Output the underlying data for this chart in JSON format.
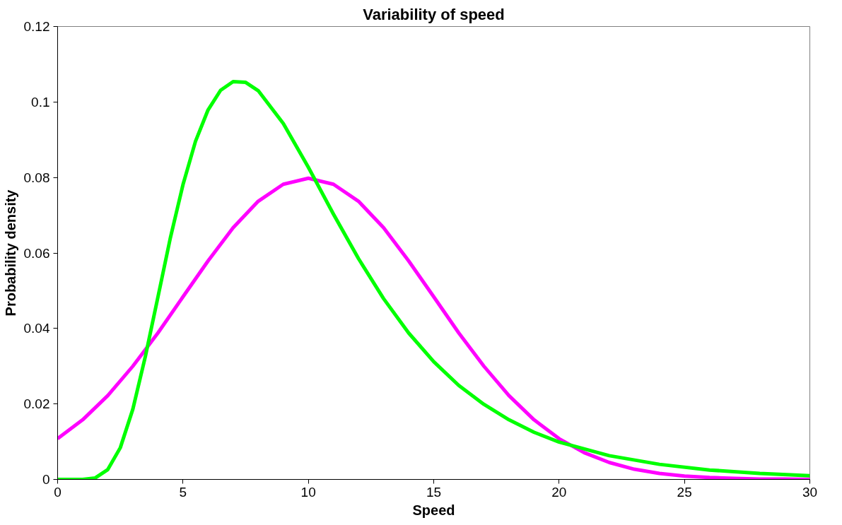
{
  "chart_data": {
    "type": "line",
    "title": "Variability of speed",
    "xlabel": "Speed",
    "ylabel": "Probability density",
    "xlim": [
      0,
      30
    ],
    "ylim": [
      0,
      0.12
    ],
    "xticks": [
      0,
      5,
      10,
      15,
      20,
      25,
      30
    ],
    "yticks": [
      0,
      0.02,
      0.04,
      0.06,
      0.08,
      0.1,
      0.12
    ],
    "grid": false,
    "marker": "none",
    "line_style": "solid",
    "series": [
      {
        "color": "#ff00ff",
        "x": [
          0,
          1,
          2,
          3,
          4,
          5,
          6,
          7,
          8,
          9,
          10,
          11,
          12,
          13,
          14,
          15,
          16,
          17,
          18,
          19,
          20,
          21,
          22,
          23,
          24,
          25,
          26,
          27,
          28,
          29,
          30
        ],
        "values": [
          0.0108,
          0.0158,
          0.0222,
          0.03,
          0.0388,
          0.0484,
          0.0579,
          0.0667,
          0.0737,
          0.0782,
          0.0798,
          0.0782,
          0.0737,
          0.0667,
          0.0579,
          0.0484,
          0.0388,
          0.03,
          0.0222,
          0.0158,
          0.0108,
          0.0071,
          0.0045,
          0.0027,
          0.0016,
          0.0009,
          0.0005,
          0.0003,
          0.0001,
          0.0001,
          0
        ]
      },
      {
        "color": "#00ff00",
        "x": [
          0,
          1,
          1.5,
          2,
          2.5,
          3,
          3.5,
          4,
          4.5,
          5,
          5.5,
          6,
          6.5,
          7,
          7.5,
          8,
          9,
          10,
          11,
          12,
          13,
          14,
          15,
          16,
          17,
          18,
          19,
          20,
          22,
          24,
          26,
          28,
          30
        ],
        "values": [
          0,
          0,
          0.0004,
          0.0026,
          0.0084,
          0.0186,
          0.0326,
          0.0483,
          0.0641,
          0.0781,
          0.0896,
          0.0979,
          0.1031,
          0.1054,
          0.1052,
          0.103,
          0.0943,
          0.0827,
          0.0703,
          0.0585,
          0.0479,
          0.0388,
          0.0312,
          0.0249,
          0.0199,
          0.0158,
          0.0125,
          0.0099,
          0.0063,
          0.004,
          0.0025,
          0.0016,
          0.001
        ]
      }
    ]
  }
}
